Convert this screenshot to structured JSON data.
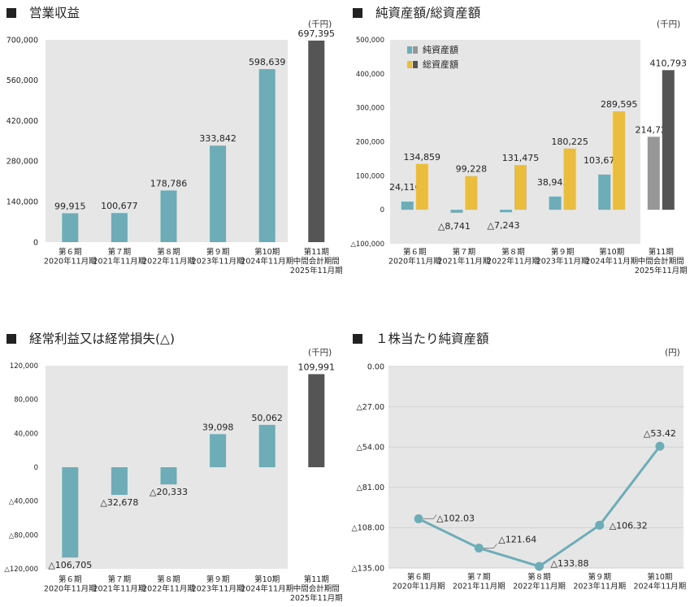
{
  "colors": {
    "teal": "#6eacb7",
    "gold": "#ebbd3e",
    "dark": "#555555",
    "gray": "#979797",
    "plot_bg": "#e6e6e6",
    "line": "#6eacb7"
  },
  "panel1": {
    "title": "営業収益",
    "unit": "(千円)",
    "chart_data": {
      "type": "bar",
      "categories": [
        [
          "第６期",
          "2020年11月期"
        ],
        [
          "第７期",
          "2021年11月期"
        ],
        [
          "第８期",
          "2022年11月期"
        ],
        [
          "第９期",
          "2023年11月期"
        ],
        [
          "第10期",
          "2024年11月期"
        ],
        [
          "第11期",
          "中間会計期間",
          "2025年11月期"
        ]
      ],
      "values": [
        99915,
        100677,
        178786,
        333842,
        598639,
        697395
      ],
      "value_labels": [
        "99,915",
        "100,677",
        "178,786",
        "333,842",
        "598,639",
        "697,395"
      ],
      "highlight_last": true,
      "ylim": [
        0,
        700000
      ],
      "yticks": [
        0,
        140000,
        280000,
        420000,
        560000,
        700000
      ],
      "ytick_labels": [
        "0",
        "140,000",
        "280,000",
        "420,000",
        "560,000",
        "700,000"
      ]
    }
  },
  "panel2": {
    "title": "純資産額/総資産額",
    "unit": "(千円)",
    "legend": [
      "純資産額",
      "総資産額"
    ],
    "chart_data": {
      "type": "bar",
      "categories": [
        [
          "第６期",
          "2020年11月期"
        ],
        [
          "第７期",
          "2021年11月期"
        ],
        [
          "第８期",
          "2022年11月期"
        ],
        [
          "第９期",
          "2023年11月期"
        ],
        [
          "第10期",
          "2024年11月期"
        ],
        [
          "第11期",
          "中間会計期間",
          "2025年11月期"
        ]
      ],
      "series": [
        {
          "name": "純資産額",
          "values": [
            24116,
            -8741,
            -7243,
            38943,
            103674,
            214723
          ],
          "labels": [
            "24,116",
            "△8,741",
            "△7,243",
            "38,943",
            "103,674",
            "214,723"
          ]
        },
        {
          "name": "総資産額",
          "values": [
            134859,
            99228,
            131475,
            180225,
            289595,
            410793
          ],
          "labels": [
            "134,859",
            "99,228",
            "131,475",
            "180,225",
            "289,595",
            "410,793"
          ]
        }
      ],
      "highlight_last": true,
      "ylim": [
        -100000,
        500000
      ],
      "yticks": [
        -100000,
        0,
        100000,
        200000,
        300000,
        400000,
        500000
      ],
      "ytick_labels": [
        "△100,000",
        "0",
        "100,000",
        "200,000",
        "300,000",
        "400,000",
        "500,000"
      ]
    }
  },
  "panel3": {
    "title": "経常利益又は経常損失(△)",
    "unit": "(千円)",
    "chart_data": {
      "type": "bar",
      "categories": [
        [
          "第６期",
          "2020年11月期"
        ],
        [
          "第７期",
          "2021年11月期"
        ],
        [
          "第８期",
          "2022年11月期"
        ],
        [
          "第９期",
          "2023年11月期"
        ],
        [
          "第10期",
          "2024年11月期"
        ],
        [
          "第11期",
          "中間会計期間",
          "2025年11月期"
        ]
      ],
      "values": [
        -106705,
        -32678,
        -20333,
        39098,
        50062,
        109991
      ],
      "value_labels": [
        "△106,705",
        "△32,678",
        "△20,333",
        "39,098",
        "50,062",
        "109,991"
      ],
      "highlight_last": true,
      "ylim": [
        -120000,
        120000
      ],
      "yticks": [
        -120000,
        -80000,
        -40000,
        0,
        40000,
        80000,
        120000
      ],
      "ytick_labels": [
        "△120,000",
        "△80,000",
        "△40,000",
        "0",
        "40,000",
        "80,000",
        "120,000"
      ]
    }
  },
  "panel4": {
    "title": "１株当たり純資産額",
    "unit": "(円)",
    "chart_data": {
      "type": "line",
      "categories": [
        [
          "第６期",
          "2020年11月期"
        ],
        [
          "第７期",
          "2021年11月期"
        ],
        [
          "第８期",
          "2022年11月期"
        ],
        [
          "第９期",
          "2023年11月期"
        ],
        [
          "第10期",
          "2024年11月期"
        ]
      ],
      "values": [
        -102.03,
        -121.64,
        -133.88,
        -106.32,
        -53.42
      ],
      "value_labels": [
        "△102.03",
        "△121.64",
        "△133.88",
        "△106.32",
        "△53.42"
      ],
      "ylim": [
        -135,
        0
      ],
      "yticks": [
        0,
        -27,
        -54,
        -81,
        -108,
        -135
      ],
      "ytick_labels": [
        "0.00",
        "△27.00",
        "△54.00",
        "△81.00",
        "△108.00",
        "△135.00"
      ]
    }
  }
}
